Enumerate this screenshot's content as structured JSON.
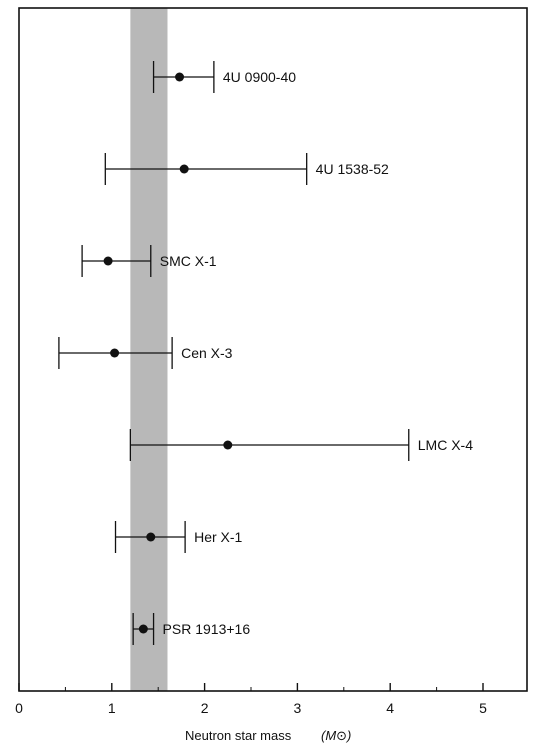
{
  "chart_data": {
    "type": "scatter",
    "title": "",
    "xlabel": "Neutron star mass",
    "xlabel_unit": "(M⊙)",
    "ylabel": "",
    "xlim": [
      0,
      5.5
    ],
    "x_ticks": [
      0,
      1,
      2,
      3,
      4,
      5
    ],
    "grid": false,
    "band": {
      "x_low": 1.2,
      "x_high": 1.6,
      "color": "#b8b8b8"
    },
    "points": [
      {
        "name": "4U 0900-40",
        "x": 1.73,
        "x_low": 1.45,
        "x_high": 2.1
      },
      {
        "name": "4U 1538-52",
        "x": 1.78,
        "x_low": 0.93,
        "x_high": 3.1
      },
      {
        "name": "SMC X-1",
        "x": 0.96,
        "x_low": 0.68,
        "x_high": 1.42
      },
      {
        "name": "Cen X-3",
        "x": 1.03,
        "x_low": 0.43,
        "x_high": 1.65
      },
      {
        "name": "LMC X-4",
        "x": 2.25,
        "x_low": 1.2,
        "x_high": 4.2
      },
      {
        "name": "Her X-1",
        "x": 1.42,
        "x_low": 1.04,
        "x_high": 1.79
      },
      {
        "name": "PSR 1913+16",
        "x": 1.34,
        "x_low": 1.23,
        "x_high": 1.45
      }
    ]
  }
}
